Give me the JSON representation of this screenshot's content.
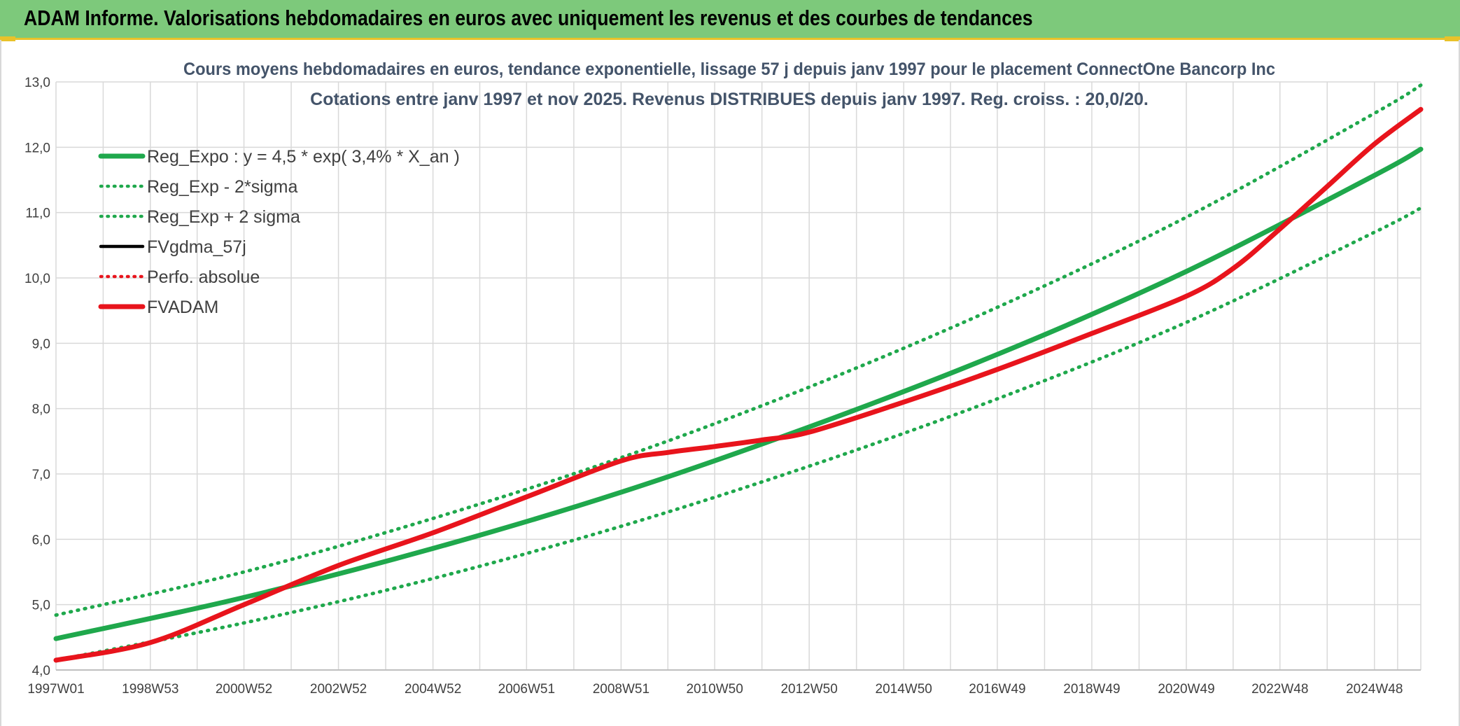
{
  "banner": {
    "title": "ADAM Informe. Valorisations hebdomadaires en euros avec uniquement les revenus et des courbes de tendances"
  },
  "colors": {
    "banner_bg": "#7dc97b",
    "banner_accent": "#e9c22a",
    "green": "#1fa84c",
    "red": "#e8141c",
    "black": "#000000",
    "grid": "#d9d9d9"
  },
  "chart_data": {
    "type": "line",
    "title": "Cours moyens hebdomadaires en euros, tendance exponentielle, lissage 57 j depuis janv 1997 pour le placement ConnectOne  Bancorp Inc",
    "subtitle": "Cotations entre janv 1997 et nov 2025. Revenus DISTRIBUES depuis janv 1997. Reg. croiss. : 20,0/20.",
    "xlabel": "",
    "ylabel": "",
    "ylim": [
      4.0,
      13.0
    ],
    "y_ticks": [
      "4,0",
      "5,0",
      "6,0",
      "7,0",
      "8,0",
      "9,0",
      "10,0",
      "11,0",
      "12,0",
      "13,0"
    ],
    "x_ticks": [
      "1997W01",
      "1998W53",
      "2000W52",
      "2002W52",
      "2004W52",
      "2006W51",
      "2008W51",
      "2010W50",
      "2012W50",
      "2014W50",
      "2016W49",
      "2018W49",
      "2020W49",
      "2022W48",
      "2024W48"
    ],
    "x_end": "2025W47",
    "grid": true,
    "legend_position": "top-left",
    "legend": [
      {
        "name": "Reg_Expo : y = 4,5 * exp( 3,4% *  X_an )",
        "style": "solid-thick",
        "color": "#1fa84c"
      },
      {
        "name": "Reg_Exp - 2*sigma",
        "style": "dotted",
        "color": "#1fa84c"
      },
      {
        "name": "Reg_Exp + 2 sigma",
        "style": "dotted",
        "color": "#1fa84c"
      },
      {
        "name": "FVgdma_57j",
        "style": "solid",
        "color": "#000000"
      },
      {
        "name": "Perfo. absolue",
        "style": "dotted",
        "color": "#e8141c"
      },
      {
        "name": "FVADAM",
        "style": "solid-thick",
        "color": "#e8141c"
      }
    ],
    "series": [
      {
        "name": "Reg_Expo : y = 4,5 * exp( 3,4% *  X_an )",
        "x": [
          "1997W01",
          "2000W52",
          "2004W52",
          "2008W51",
          "2012W50",
          "2016W49",
          "2020W49",
          "2024W48",
          "2025W47"
        ],
        "values": [
          4.48,
          5.11,
          5.86,
          6.72,
          7.72,
          8.83,
          10.1,
          11.57,
          11.97
        ]
      },
      {
        "name": "Reg_Exp - 2*sigma",
        "x": [
          "1997W01",
          "2000W52",
          "2004W52",
          "2008W51",
          "2012W50",
          "2016W49",
          "2020W49",
          "2024W48",
          "2025W47"
        ],
        "values": [
          4.15,
          4.72,
          5.4,
          6.2,
          7.12,
          8.15,
          9.32,
          10.7,
          11.07
        ]
      },
      {
        "name": "Reg_Exp + 2 sigma",
        "x": [
          "1997W01",
          "2000W52",
          "2004W52",
          "2008W51",
          "2012W50",
          "2016W49",
          "2020W49",
          "2024W48",
          "2025W47"
        ],
        "values": [
          4.84,
          5.5,
          6.32,
          7.25,
          8.33,
          9.55,
          10.93,
          12.52,
          12.95
        ]
      },
      {
        "name": "FVADAM",
        "x": [
          "1997W01",
          "1998W53",
          "2000W52",
          "2002W52",
          "2004W52",
          "2006W51",
          "2008W51",
          "2009W51",
          "2010W50",
          "2011W50",
          "2012W50",
          "2014W50",
          "2016W49",
          "2018W49",
          "2020W49",
          "2021W49",
          "2022W48",
          "2023W48",
          "2024W48",
          "2025W47"
        ],
        "values": [
          4.15,
          4.42,
          5.0,
          5.6,
          6.1,
          6.65,
          7.2,
          7.33,
          7.42,
          7.52,
          7.64,
          8.1,
          8.6,
          9.15,
          9.72,
          10.15,
          10.75,
          11.4,
          12.05,
          12.58
        ]
      }
    ]
  }
}
